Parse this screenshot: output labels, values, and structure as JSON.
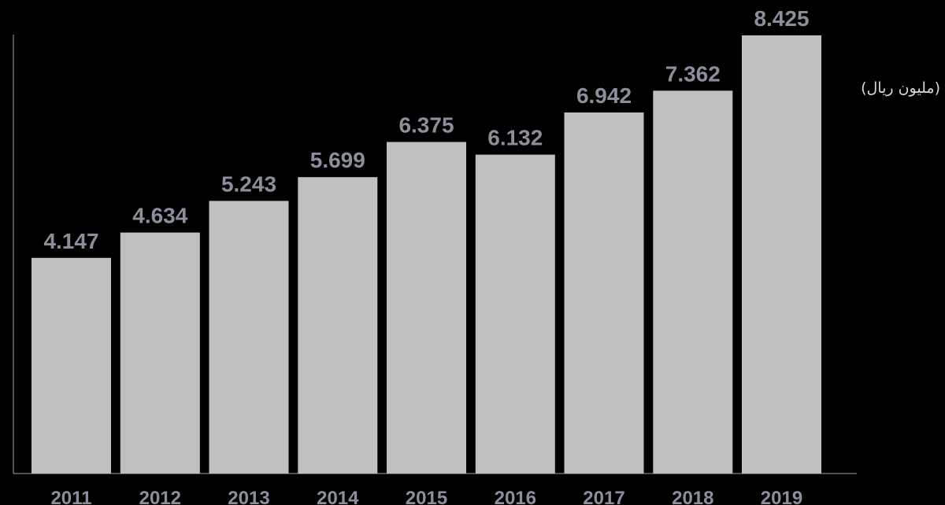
{
  "chart_data": {
    "type": "bar",
    "categories": [
      "2011",
      "2012",
      "2013",
      "2014",
      "2015",
      "2016",
      "2017",
      "2018",
      "2019"
    ],
    "values": [
      4.147,
      4.634,
      5.243,
      5.699,
      6.375,
      6.132,
      6.942,
      7.362,
      8.425
    ],
    "value_labels": [
      "4.147",
      "4.634",
      "5.243",
      "5.699",
      "6.375",
      "6.132",
      "6.942",
      "7.362",
      "8.425"
    ],
    "ylabel": "(مليون ريال)",
    "ylim": [
      0,
      8.425
    ],
    "grid": false,
    "legend": "none",
    "colors": {
      "background": "#000000",
      "bar": "#c0c0c0",
      "label": "#8a8f9a",
      "axis": "#9aa0aa",
      "unit": "#d8d8d8"
    }
  }
}
